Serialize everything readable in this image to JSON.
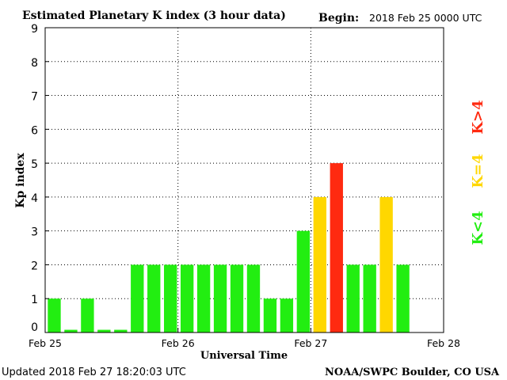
{
  "header": {
    "title": "Estimated Planetary K index (3 hour data)",
    "begin_label": "Begin:",
    "begin_value": "2018 Feb 25 0000 UTC"
  },
  "footer": {
    "updated": "Updated 2018 Feb 27 18:20:03 UTC",
    "credit": "NOAA/SWPC Boulder, CO USA"
  },
  "legend": {
    "below": "K<4",
    "equal": "K=4",
    "above": "K>4"
  },
  "colors": {
    "below": "#22ee11",
    "equal": "#ffd700",
    "above": "#ff2a10"
  },
  "chart_data": {
    "type": "bar",
    "xlabel": "Universal Time",
    "ylabel": "Kp index",
    "ylim": [
      0,
      9
    ],
    "yticks": [
      "0",
      "1",
      "2",
      "3",
      "4",
      "5",
      "6",
      "7",
      "8",
      "9"
    ],
    "xticks": [
      "Feb 25",
      "Feb 26",
      "Feb 27",
      "Feb 28"
    ],
    "grid": true,
    "values": [
      1,
      0,
      1,
      0,
      0,
      2,
      2,
      2,
      2,
      2,
      2,
      2,
      2,
      1,
      1,
      3,
      4,
      5,
      2,
      2,
      4,
      2
    ]
  }
}
